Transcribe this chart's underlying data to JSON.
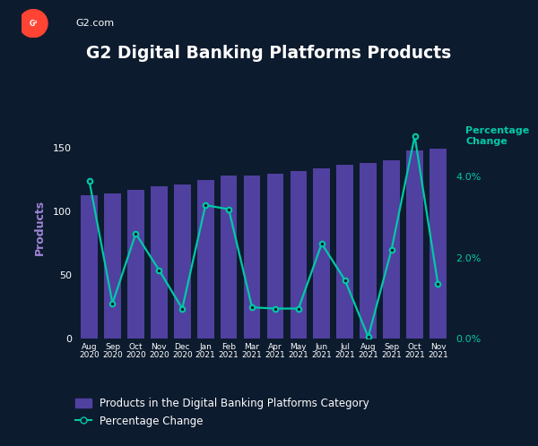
{
  "title": "G2 Digital Banking Platforms Products",
  "bg_color": "#0d1b2e",
  "bar_color": "#5040a0",
  "line_color": "#00c9a7",
  "left_label_color": "#a085d8",
  "right_label_color": "#00c9a7",
  "text_color": "#ffffff",
  "categories": [
    "Aug\n2020",
    "Sep\n2020",
    "Oct\n2020",
    "Nov\n2020",
    "Dec\n2020",
    "Jan\n2021",
    "Feb\n2021",
    "Mar\n2021",
    "Apr\n2021",
    "May\n2021",
    "Jun\n2021",
    "Jul\n2021",
    "Aug\n2021",
    "Sep\n2021",
    "Oct\n2021",
    "Nov\n2021"
  ],
  "bar_values": [
    113,
    114,
    117,
    120,
    121,
    125,
    128,
    128,
    130,
    132,
    134,
    137,
    138,
    140,
    148,
    149
  ],
  "line_values": [
    3.9,
    0.88,
    2.6,
    1.7,
    0.75,
    3.3,
    3.2,
    0.78,
    0.75,
    0.75,
    2.35,
    1.45,
    0.05,
    2.2,
    5.0,
    1.35
  ],
  "left_ylabel": "Products",
  "right_ylabel": "Percentage\nChange",
  "ylim_left": [
    0,
    175
  ],
  "ylim_right": [
    0,
    5.5
  ],
  "yticks_left": [
    0,
    50,
    100,
    150
  ],
  "yticks_right": [
    0.0,
    2.0,
    4.0
  ],
  "ytick_labels_right": [
    "0.0%",
    "2.0%",
    "4.0%"
  ],
  "legend_bar_label": "Products in the Digital Banking Platforms Category",
  "legend_line_label": "Percentage Change",
  "logo_text": "G2.com",
  "logo_color": "#ff4433"
}
